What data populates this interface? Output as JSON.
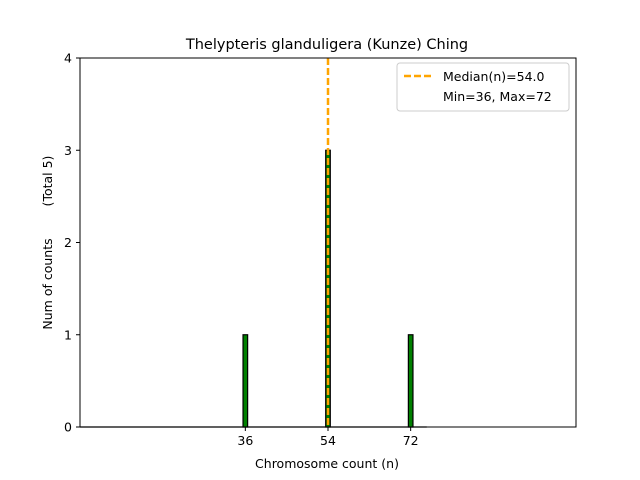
{
  "chart_data": {
    "type": "bar",
    "title": "Thelypteris glanduligera (Kunze) Ching",
    "xlabel": "Chromosome count (n)",
    "ylabel": "Num of counts",
    "ylabel_total": "(Total 5)",
    "xlim": [
      0,
      108
    ],
    "ylim": [
      0,
      4
    ],
    "yticks": [
      "0",
      "1",
      "2",
      "3",
      "4"
    ],
    "xticks": [
      "36",
      "54",
      "72"
    ],
    "bars": [
      {
        "x": 36,
        "count": 1
      },
      {
        "x": 54,
        "count": 3
      },
      {
        "x": 72,
        "count": 1
      }
    ],
    "median": 54.0,
    "legend": {
      "position": "top-right",
      "median_label": "Median(n)=54.0",
      "range_label": "Min=36, Max=72"
    },
    "colors": {
      "bar_fill": "#008000",
      "bar_edge": "#000000",
      "median_line": "#FFA500"
    },
    "grid": false
  }
}
